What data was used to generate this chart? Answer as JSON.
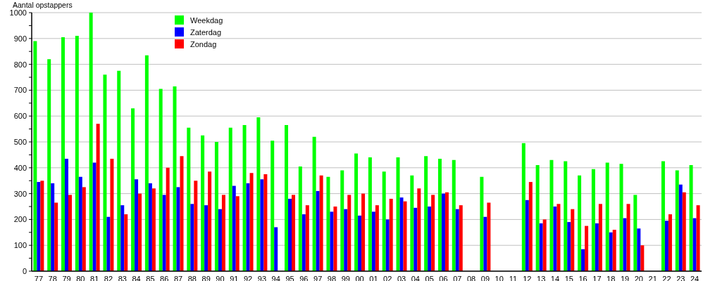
{
  "chart_data": {
    "type": "bar",
    "ylabel": "Aantal opstappers",
    "categories": [
      "77",
      "78",
      "79",
      "80",
      "81",
      "82",
      "83",
      "84",
      "85",
      "86",
      "87",
      "88",
      "89",
      "90",
      "91",
      "92",
      "93",
      "94",
      "95",
      "96",
      "97",
      "98",
      "99",
      "00",
      "01",
      "02",
      "03",
      "04",
      "05",
      "06",
      "07",
      "08",
      "09",
      "10",
      "11",
      "12",
      "13",
      "14",
      "15",
      "16",
      "17",
      "18",
      "19",
      "20",
      "21",
      "22",
      "23",
      "24"
    ],
    "series": [
      {
        "name": "Weekdag",
        "color": "#00ff00",
        "values": [
          890,
          820,
          905,
          910,
          1000,
          760,
          775,
          630,
          835,
          705,
          715,
          555,
          525,
          500,
          555,
          565,
          595,
          505,
          565,
          405,
          520,
          365,
          390,
          455,
          440,
          385,
          440,
          370,
          445,
          435,
          430,
          null,
          365,
          null,
          null,
          495,
          410,
          430,
          425,
          370,
          395,
          420,
          415,
          295,
          null,
          425,
          390,
          410
        ]
      },
      {
        "name": "Zaterdag",
        "color": "#0000ff",
        "values": [
          345,
          340,
          435,
          365,
          420,
          210,
          255,
          355,
          340,
          295,
          325,
          260,
          255,
          240,
          330,
          340,
          355,
          170,
          280,
          220,
          310,
          230,
          240,
          215,
          230,
          200,
          285,
          245,
          250,
          300,
          240,
          null,
          210,
          null,
          null,
          275,
          185,
          250,
          190,
          85,
          185,
          150,
          205,
          165,
          null,
          195,
          335,
          205
        ]
      },
      {
        "name": "Zondag",
        "color": "#ff0000",
        "values": [
          350,
          265,
          295,
          325,
          570,
          435,
          220,
          300,
          320,
          400,
          445,
          350,
          385,
          295,
          290,
          380,
          375,
          null,
          295,
          255,
          370,
          250,
          295,
          300,
          255,
          280,
          270,
          320,
          295,
          305,
          255,
          null,
          265,
          null,
          null,
          345,
          200,
          260,
          240,
          175,
          260,
          160,
          260,
          100,
          null,
          220,
          305,
          255
        ]
      }
    ],
    "ylim": [
      0,
      1000
    ],
    "yticks": [
      0,
      {
        "value": 50,
        "label": null
      },
      100,
      {
        "value": 150,
        "label": null
      },
      200,
      {
        "value": 250,
        "label": null
      },
      300,
      {
        "value": 350,
        "label": null
      },
      400,
      {
        "value": 450,
        "label": null
      },
      500,
      {
        "value": 550,
        "label": null
      },
      600,
      {
        "value": 650,
        "label": null
      },
      700,
      {
        "value": 750,
        "label": null
      },
      800,
      {
        "value": 850,
        "label": null
      },
      900,
      {
        "value": 950,
        "label": null
      },
      1000
    ],
    "grid": "y",
    "legend": "top left"
  }
}
